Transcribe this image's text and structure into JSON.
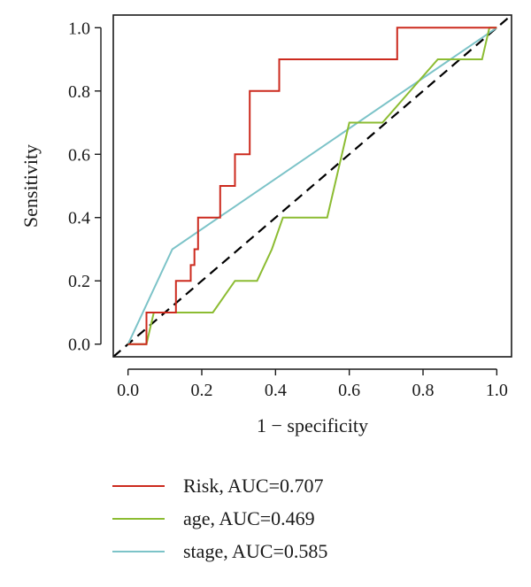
{
  "chart_data": {
    "type": "line",
    "title": "",
    "xlabel": "1 − specificity",
    "ylabel": "Sensitivity",
    "xlim": [
      -0.04,
      1.04
    ],
    "ylim": [
      -0.04,
      1.04
    ],
    "xticks": [
      "0.0",
      "0.2",
      "0.4",
      "0.6",
      "0.8",
      "1.0"
    ],
    "yticks": [
      "0.0",
      "0.2",
      "0.4",
      "0.6",
      "0.8",
      "1.0"
    ],
    "grid": false,
    "legend_position": "bottom",
    "reference_line": {
      "x": [
        -0.04,
        1.04
      ],
      "y": [
        -0.04,
        1.04
      ],
      "style": "dashed",
      "color": "#000000"
    },
    "series": [
      {
        "name": "Risk, AUC=0.707",
        "color": "#cc2a1e",
        "x": [
          0.0,
          0.05,
          0.05,
          0.13,
          0.13,
          0.17,
          0.17,
          0.18,
          0.18,
          0.19,
          0.19,
          0.25,
          0.25,
          0.29,
          0.29,
          0.33,
          0.33,
          0.41,
          0.41,
          0.73,
          0.73,
          0.98,
          1.0
        ],
        "y": [
          0.0,
          0.0,
          0.1,
          0.1,
          0.2,
          0.2,
          0.25,
          0.25,
          0.3,
          0.3,
          0.4,
          0.4,
          0.5,
          0.5,
          0.6,
          0.6,
          0.8,
          0.8,
          0.9,
          0.9,
          1.0,
          1.0,
          1.0
        ]
      },
      {
        "name": "age, AUC=0.469",
        "color": "#8cbc32",
        "x": [
          0.0,
          0.05,
          0.07,
          0.23,
          0.29,
          0.35,
          0.39,
          0.42,
          0.54,
          0.6,
          0.69,
          0.84,
          0.96,
          0.98,
          1.0
        ],
        "y": [
          0.0,
          0.0,
          0.1,
          0.1,
          0.2,
          0.2,
          0.3,
          0.4,
          0.4,
          0.7,
          0.7,
          0.9,
          0.9,
          1.0,
          1.0
        ]
      },
      {
        "name": "stage, AUC=0.585",
        "color": "#7cc3c8",
        "x": [
          0.0,
          0.12,
          1.0
        ],
        "y": [
          0.0,
          0.3,
          1.0
        ]
      }
    ]
  }
}
